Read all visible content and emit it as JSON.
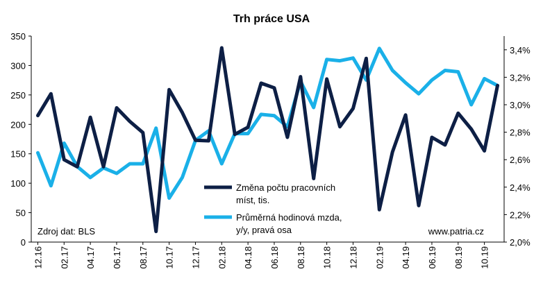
{
  "chart_data": {
    "type": "line",
    "title": "Trh práce USA",
    "categories": [
      "12.16",
      "01.17",
      "02.17",
      "03.17",
      "04.17",
      "05.17",
      "06.17",
      "07.17",
      "08.17",
      "09.17",
      "10.17",
      "11.17",
      "12.17",
      "01.18",
      "02.18",
      "03.18",
      "04.18",
      "05.18",
      "06.18",
      "07.18",
      "08.18",
      "09.18",
      "10.18",
      "11.18",
      "12.18",
      "01.19",
      "02.19",
      "03.19",
      "04.19",
      "05.19",
      "06.19",
      "07.19",
      "08.19",
      "09.19",
      "10.19",
      "11.19"
    ],
    "x_tick_labels": [
      "12.16",
      "02.17",
      "04.17",
      "06.17",
      "08.17",
      "10.17",
      "12.17",
      "02.18",
      "04.18",
      "06.18",
      "08.18",
      "10.18",
      "12.18",
      "02.19",
      "04.19",
      "06.19",
      "08.19",
      "10.19"
    ],
    "y_left": {
      "ticks": [
        "0",
        "50",
        "100",
        "150",
        "200",
        "250",
        "300",
        "350"
      ],
      "ylim": [
        0,
        350
      ]
    },
    "y_right": {
      "ticks": [
        "2,0%",
        "2,2%",
        "2,4%",
        "2,6%",
        "2,8%",
        "3,0%",
        "3,2%",
        "3,4%"
      ],
      "ylim": [
        2.0,
        3.5
      ]
    },
    "series": [
      {
        "name": "Změna počtu pracovních míst, tis.",
        "name_lines": [
          "Změna počtu pracovních",
          "míst, tis."
        ],
        "axis": "left",
        "color": "#0d1f45",
        "values": [
          215,
          252,
          140,
          128,
          212,
          128,
          228,
          205,
          186,
          18,
          259,
          220,
          173,
          172,
          330,
          183,
          195,
          270,
          262,
          178,
          281,
          108,
          277,
          196,
          227,
          312,
          55,
          153,
          216,
          62,
          178,
          165,
          219,
          192,
          155,
          266
        ]
      },
      {
        "name": "Průměrná hodinová mzda, y/y, pravá osa",
        "name_lines": [
          "Průměrná hodinová mzda,",
          "y/y, pravá osa"
        ],
        "axis": "right",
        "color": "#1ab0e8",
        "values": [
          2.65,
          2.41,
          2.72,
          2.55,
          2.47,
          2.54,
          2.5,
          2.57,
          2.57,
          2.83,
          2.32,
          2.47,
          2.74,
          2.81,
          2.57,
          2.79,
          2.79,
          2.93,
          2.92,
          2.84,
          3.17,
          2.98,
          3.33,
          3.32,
          3.34,
          3.18,
          3.41,
          3.25,
          3.16,
          3.08,
          3.18,
          3.25,
          3.24,
          3.0,
          3.19,
          3.14
        ]
      }
    ],
    "annotations": {
      "source": "Zdroj dat: BLS",
      "website": "www.patria.cz"
    },
    "grid": false,
    "legend_position": "lower-center"
  }
}
